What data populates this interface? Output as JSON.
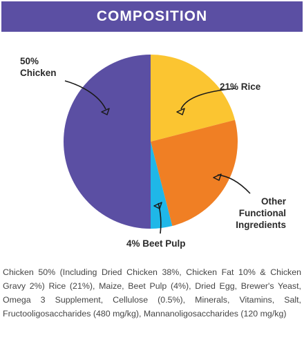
{
  "header": {
    "title": "COMPOSITION"
  },
  "chart_data": {
    "type": "pie",
    "title": "",
    "slices": [
      {
        "label_lines": [
          "21% Rice"
        ],
        "value": 21,
        "color": "#fbc531"
      },
      {
        "label_lines": [
          "Other",
          "Functional",
          "Ingredients"
        ],
        "value": 25,
        "color": "#f07f24"
      },
      {
        "label_lines": [
          "4% Beet Pulp"
        ],
        "value": 4,
        "color": "#1fb7e8"
      },
      {
        "label_lines": [
          "50%",
          "Chicken"
        ],
        "value": 50,
        "color": "#5b4fa3"
      }
    ]
  },
  "description": "Chicken 50% (Including Dried Chicken 38%, Chicken Fat 10% & Chicken Gravy 2%) Rice (21%), Maize, Beet Pulp (4%), Dried Egg, Brewer's Yeast, Omega 3 Supplement, Cellulose (0.5%), Minerals, Vitamins, Salt, Fructooligosaccharides (480 mg/kg), Mannanoligosaccharides (120 mg/kg)"
}
